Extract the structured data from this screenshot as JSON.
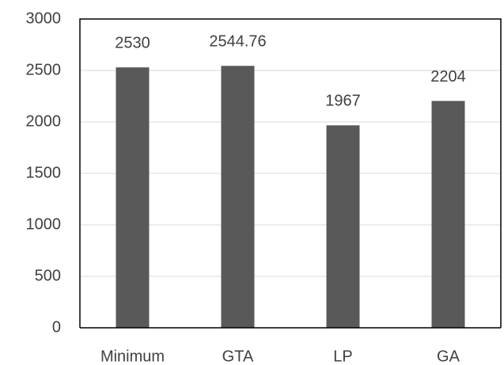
{
  "chart_data": {
    "type": "bar",
    "categories": [
      "Minimum",
      "GTA",
      "LP",
      "GA"
    ],
    "values": [
      2530,
      2544.76,
      1967,
      2204
    ],
    "color": "#595959",
    "ylim": [
      0,
      3000
    ],
    "yticks": [
      0,
      500,
      1000,
      1500,
      2000,
      2500,
      3000
    ],
    "grid": true
  }
}
